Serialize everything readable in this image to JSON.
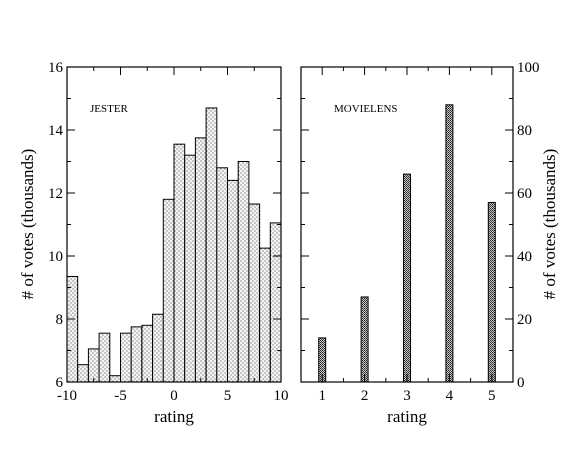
{
  "chart_data": [
    {
      "type": "bar",
      "title": "JESTER",
      "xlabel": "rating",
      "ylabel": "# of votes (thousands)",
      "xlim": [
        -10,
        10
      ],
      "ylim": [
        6,
        16
      ],
      "xticks": [
        "-10",
        "-5",
        "0",
        "5",
        "10"
      ],
      "yticks": [
        "6",
        "8",
        "10",
        "12",
        "14",
        "16"
      ],
      "bin_width": 1,
      "x": [
        -9.5,
        -8.5,
        -7.5,
        -6.5,
        -5.5,
        -4.5,
        -3.5,
        -2.5,
        -1.5,
        -0.5,
        0.5,
        1.5,
        2.5,
        3.5,
        4.5,
        5.5,
        6.5,
        7.5,
        8.5,
        9.5
      ],
      "values": [
        9.35,
        6.55,
        7.05,
        7.55,
        6.2,
        7.55,
        7.75,
        7.8,
        8.15,
        11.8,
        13.55,
        13.2,
        13.75,
        14.7,
        12.8,
        12.4,
        13.0,
        11.65,
        10.25,
        11.05
      ],
      "fill": "#e6e6e6",
      "stroke": "#000000"
    },
    {
      "type": "bar",
      "title": "MOVIELENS",
      "xlabel": "rating",
      "ylabel": "# of votes (thousands)",
      "xlim": [
        0.5,
        5.5
      ],
      "ylim": [
        0,
        100
      ],
      "xticks": [
        "1",
        "2",
        "3",
        "4",
        "5"
      ],
      "yticks": [
        "0",
        "20",
        "40",
        "60",
        "80",
        "100"
      ],
      "categories": [
        1,
        2,
        3,
        4,
        5
      ],
      "values": [
        14,
        27,
        66,
        88,
        57
      ],
      "fill": "#999999",
      "stroke": "#000000"
    }
  ]
}
